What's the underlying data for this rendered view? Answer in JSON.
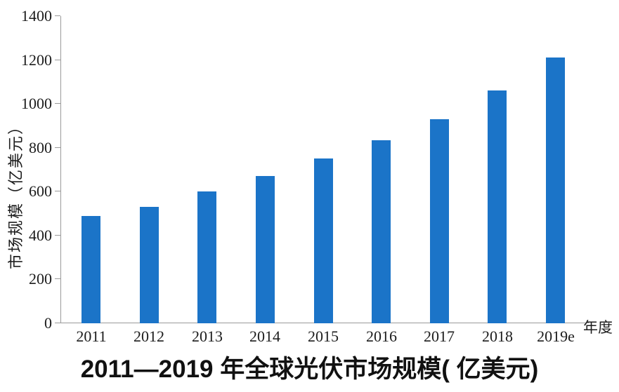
{
  "chart": {
    "title": "2011—2019 年全球光伏市场规模( 亿美元)",
    "y_axis_title": "市场规模（亿美元）",
    "x_axis_title": "年度"
  },
  "chart_data": {
    "type": "bar",
    "categories": [
      "2011",
      "2012",
      "2013",
      "2014",
      "2015",
      "2016",
      "2017",
      "2018",
      "2019e"
    ],
    "values": [
      490,
      530,
      600,
      670,
      750,
      835,
      930,
      1060,
      1210
    ],
    "title": "2011—2019 年全球光伏市场规模( 亿美元)",
    "xlabel": "年度",
    "ylabel": "市场规模（亿美元）",
    "ylim": [
      0,
      1400
    ],
    "yticks": [
      0,
      200,
      400,
      600,
      800,
      1000,
      1200,
      1400
    ],
    "bar_color": "#1B74C8",
    "axis_color": "#9a9a9a",
    "text_color": "#1c1c1c",
    "grid": false,
    "legend": null
  }
}
